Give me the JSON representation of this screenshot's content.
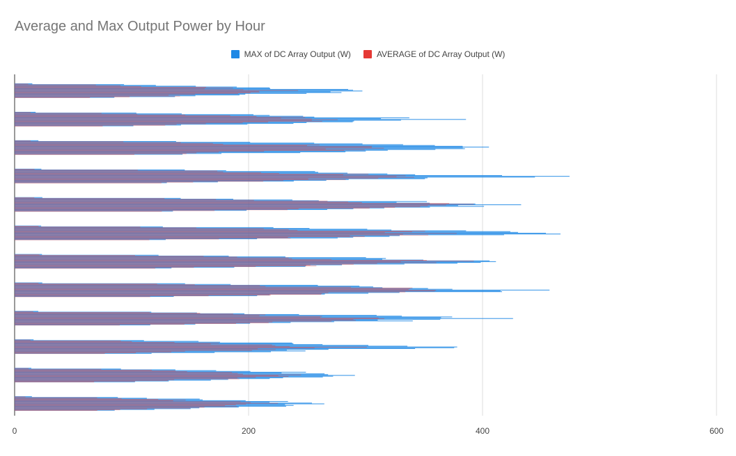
{
  "chart_data": {
    "type": "bar",
    "orientation": "horizontal",
    "title": "Average and Max Output Power by Hour",
    "xlabel": "",
    "ylabel": "",
    "xlim": [
      0,
      600
    ],
    "x_ticks": [
      "0",
      "200",
      "400",
      "600"
    ],
    "grid": "vertical",
    "legend_position": "top",
    "series": [
      {
        "name": "MAX of DC Array Output (W)",
        "color": "#1e88e5"
      },
      {
        "name": "AVERAGE of DC Array Output (W)",
        "color": "#e53935"
      }
    ],
    "groups": [
      {
        "max_peak": 337,
        "avg_peak": 262
      },
      {
        "max_peak": 395,
        "avg_peak": 316
      },
      {
        "max_peak": 476,
        "avg_peak": 364
      },
      {
        "max_peak": 491,
        "avg_peak": 420
      },
      {
        "max_peak": 503,
        "avg_peak": 432
      },
      {
        "max_peak": 511,
        "avg_peak": 446
      },
      {
        "max_peak": 484,
        "avg_peak": 436
      },
      {
        "max_peak": 484,
        "avg_peak": 432
      },
      {
        "max_peak": 438,
        "avg_peak": 382
      },
      {
        "max_peak": 405,
        "avg_peak": 305
      },
      {
        "max_peak": 351,
        "avg_peak": 277
      },
      {
        "max_peak": 309,
        "avg_peak": 245
      }
    ]
  }
}
